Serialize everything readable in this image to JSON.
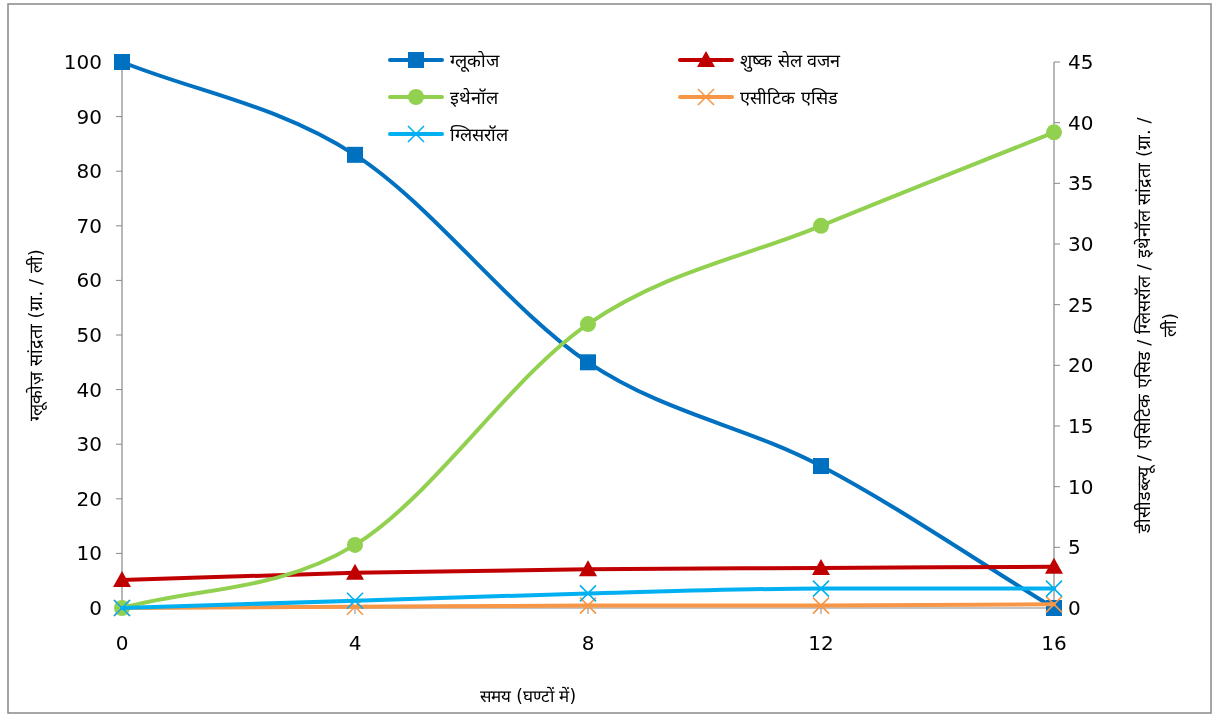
{
  "chart_data": {
    "type": "line",
    "xlabel": "समय (घण्टों में)",
    "ylabel": "ग्लूकोज़ सांद्रता (ग्रा. / ली)",
    "y2label": "डीसीडब्ल्यू / एसिटिक एसिड / ग्लिसरॉल / इथेनॉल सांद्रता (ग्रा. / ली)",
    "x": [
      0,
      4,
      8,
      12,
      16
    ],
    "xlim": [
      0,
      16
    ],
    "xticks": [
      0,
      4,
      8,
      12,
      16
    ],
    "ylim": [
      0,
      100
    ],
    "yticks": [
      0,
      10,
      20,
      30,
      40,
      50,
      60,
      70,
      80,
      90,
      100
    ],
    "y2lim": [
      0,
      45
    ],
    "y2ticks": [
      0,
      5,
      10,
      15,
      20,
      25,
      30,
      35,
      40,
      45
    ],
    "legend": "top",
    "line_style": "solid",
    "series": [
      {
        "name": "ग्लूकोज",
        "color": "#0070c0",
        "marker": "square",
        "values": [
          100,
          83,
          45,
          26,
          0
        ]
      },
      {
        "name": "शुष्क सेल वजन",
        "color": "#c00000",
        "marker": "triangle",
        "axis": "y2",
        "values": [
          2.3,
          2.9,
          3.2,
          3.3,
          3.4
        ]
      },
      {
        "name": "इथेनॉल",
        "color": "#92d050",
        "marker": "circle",
        "axis": "y2",
        "values": [
          0,
          5.2,
          23.4,
          31.5,
          39.2
        ]
      },
      {
        "name": "एसीटिक एसिड",
        "color": "#f79646",
        "marker": "cross",
        "axis": "y2",
        "values": [
          0,
          0.1,
          0.2,
          0.2,
          0.3
        ]
      },
      {
        "name": "ग्लिसरॉल",
        "color": "#00b0f0",
        "marker": "cross",
        "axis": "y2",
        "values": [
          0,
          0.6,
          1.2,
          1.6,
          1.6
        ]
      }
    ]
  }
}
